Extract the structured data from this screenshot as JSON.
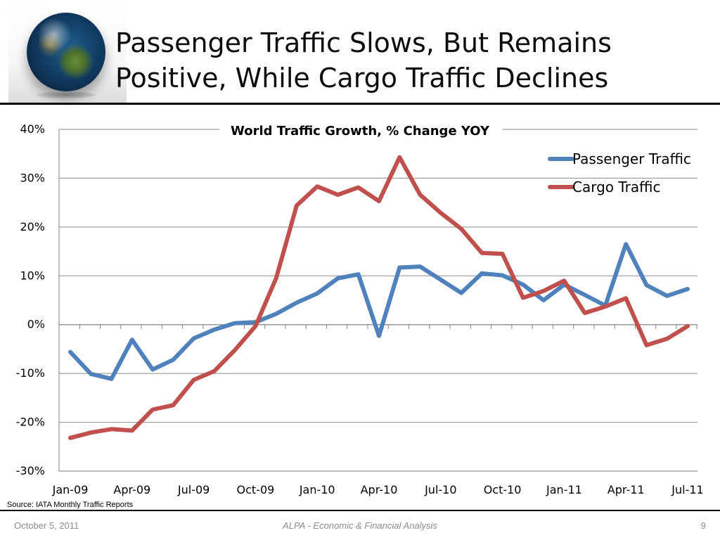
{
  "slide": {
    "title_line1": "Passenger Traffic Slows, But Remains",
    "title_line2": "Positive, While Cargo Traffic Declines",
    "source": "Source: IATA Monthly Traffic Reports",
    "footer_date": "October 5, 2011",
    "footer_center": "ALPA - Economic & Financial Analysis",
    "footer_page": "9"
  },
  "chart_data": {
    "type": "line",
    "title": "World Traffic Growth, % Change YOY",
    "xlabel": "",
    "ylabel": "",
    "ylim": [
      -30,
      40
    ],
    "yticks": [
      -30,
      -20,
      -10,
      0,
      10,
      20,
      30,
      40
    ],
    "ytick_labels": [
      "-30%",
      "-20%",
      "-10%",
      "0%",
      "10%",
      "20%",
      "30%",
      "40%"
    ],
    "x": [
      "Jan-09",
      "Feb-09",
      "Mar-09",
      "Apr-09",
      "May-09",
      "Jun-09",
      "Jul-09",
      "Aug-09",
      "Sep-09",
      "Oct-09",
      "Nov-09",
      "Dec-09",
      "Jan-10",
      "Feb-10",
      "Mar-10",
      "Apr-10",
      "May-10",
      "Jun-10",
      "Jul-10",
      "Aug-10",
      "Sep-10",
      "Oct-10",
      "Nov-10",
      "Dec-10",
      "Jan-11",
      "Feb-11",
      "Mar-11",
      "Apr-11",
      "May-11",
      "Jun-11",
      "Jul-11"
    ],
    "xtick_labels": [
      "Jan-09",
      "Apr-09",
      "Jul-09",
      "Oct-09",
      "Jan-10",
      "Apr-10",
      "Jul-10",
      "Oct-10",
      "Jan-11",
      "Apr-11",
      "Jul-11"
    ],
    "grid": true,
    "legend_position": "top-right",
    "series": [
      {
        "name": "Passenger Traffic",
        "color": "#4f81bd",
        "values": [
          -5.6,
          -10.1,
          -11.1,
          -3.1,
          -9.2,
          -7.2,
          -2.8,
          -1.0,
          0.3,
          0.5,
          2.2,
          4.5,
          6.4,
          9.5,
          10.3,
          -2.3,
          11.7,
          11.9,
          9.2,
          6.5,
          10.5,
          10.1,
          8.2,
          5.0,
          8.2,
          6.1,
          3.9,
          16.5,
          8.1,
          5.9,
          7.3
        ]
      },
      {
        "name": "Cargo Traffic",
        "color": "#c0504d",
        "values": [
          -23.2,
          -22.1,
          -21.4,
          -21.7,
          -17.4,
          -16.5,
          -11.3,
          -9.5,
          -5.2,
          -0.3,
          9.5,
          24.4,
          28.3,
          26.6,
          28.1,
          25.3,
          34.3,
          26.6,
          22.9,
          19.6,
          14.7,
          14.5,
          5.5,
          6.9,
          9.0,
          2.4,
          3.7,
          5.4,
          -4.2,
          -2.9,
          -0.3
        ]
      }
    ],
    "colors": {
      "axis": "#808080",
      "grid": "#8c8c8c"
    }
  }
}
